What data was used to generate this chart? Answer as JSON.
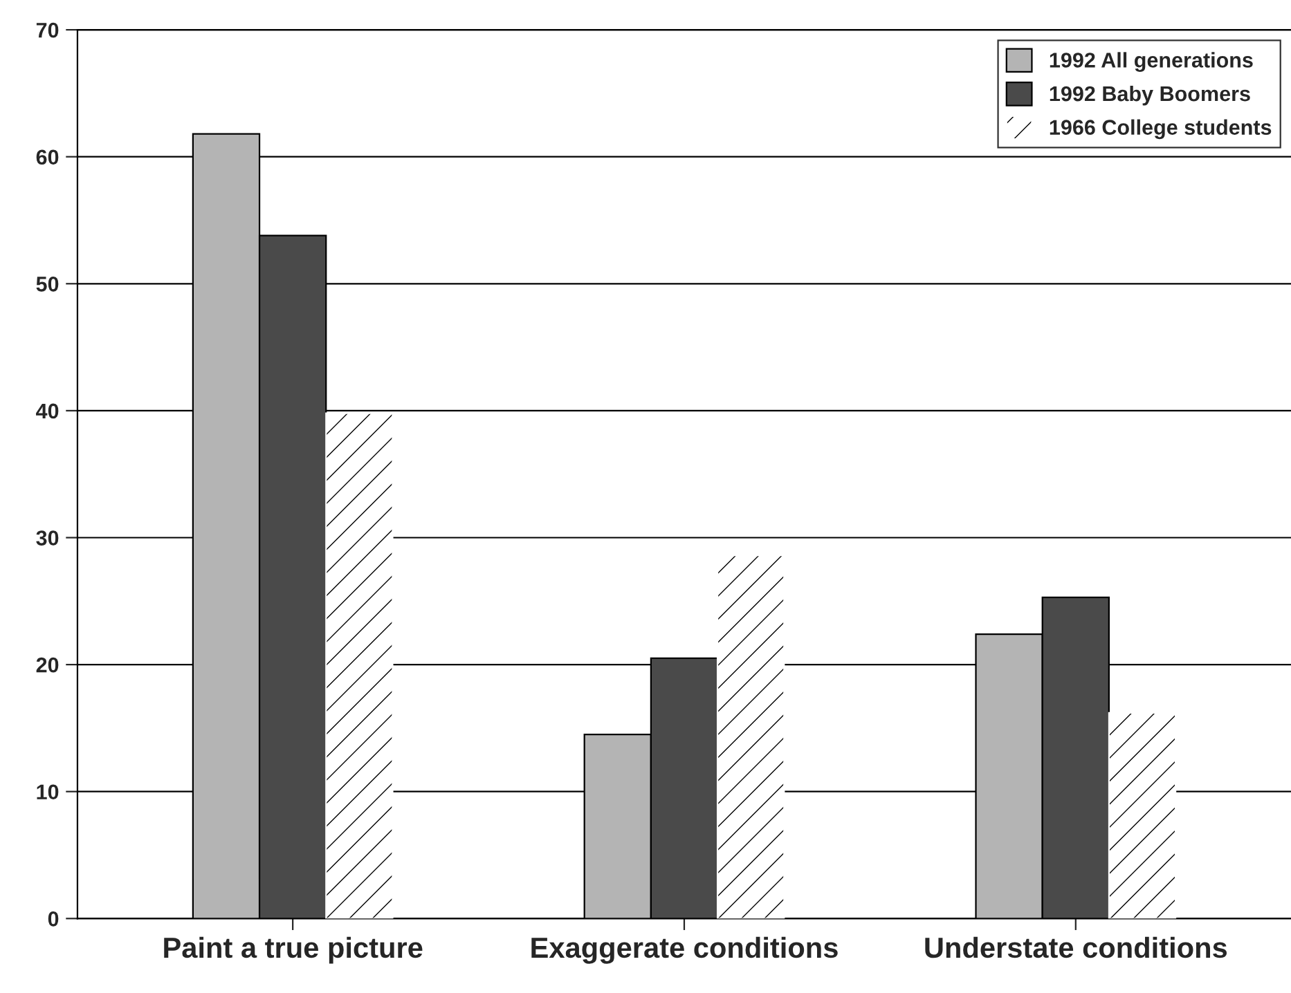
{
  "chart_data": {
    "type": "bar",
    "categories": [
      "Paint a true picture",
      "Exaggerate conditions",
      "Understate conditions"
    ],
    "series": [
      {
        "name": "1992 All generations",
        "color": "#b4b4b4",
        "values": [
          61.8,
          14.5,
          22.4
        ]
      },
      {
        "name": "1992 Baby Boomers",
        "color": "#4a4a4a",
        "values": [
          53.8,
          20.5,
          25.3
        ]
      },
      {
        "name": "1966 College students",
        "color": "#ffffff",
        "values": [
          39.8,
          28.6,
          16.2
        ]
      }
    ],
    "ylim": [
      0,
      70
    ],
    "yticks": [
      0,
      10,
      20,
      30,
      40,
      50,
      60,
      70
    ],
    "grid": "y",
    "legend": "top right"
  }
}
